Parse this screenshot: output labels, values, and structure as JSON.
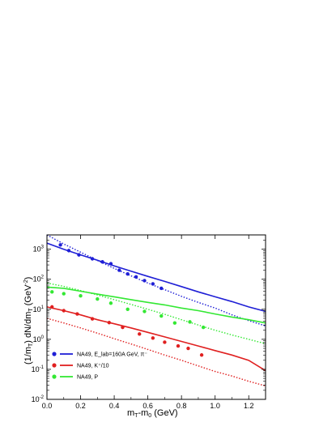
{
  "chart_data": {
    "type": "line",
    "xlabel": "m_T-m_0 (GeV)",
    "ylabel": "(1/m_T) dN/dm_T (GeV^-2)",
    "xlim": [
      0.0,
      1.3
    ],
    "ylim": [
      0.01,
      3000
    ],
    "yscale": "log",
    "x_ticks": [
      "0.0",
      "0.2",
      "0.4",
      "0.6",
      "0.8",
      "1.0",
      "1.2"
    ],
    "y_tick_exponents": [
      "-2",
      "-1",
      "0",
      "1",
      "2",
      "3"
    ],
    "legend_position": "bottom-left",
    "legend": [
      {
        "label": "NA49, E_lab=160A GeV, π⁻",
        "color": "#1f1fd6"
      },
      {
        "label": "NA49, K⁺/10",
        "color": "#e02020"
      },
      {
        "label": "NA49, P",
        "color": "#33e833"
      }
    ],
    "series": [
      {
        "name": "NA49, E_lab=160A GeV, π⁻",
        "color": "#1f1fd6",
        "points": {
          "x": [
            0.08,
            0.13,
            0.19,
            0.27,
            0.33,
            0.38,
            0.43,
            0.48,
            0.53,
            0.58,
            0.63,
            0.68
          ],
          "y": [
            1400,
            900,
            650,
            480,
            380,
            330,
            200,
            150,
            120,
            90,
            70,
            50
          ]
        },
        "solid": {
          "x": [
            0.0,
            0.1,
            0.2,
            0.3,
            0.4,
            0.5,
            0.6,
            0.7,
            0.8,
            0.9,
            1.0,
            1.1,
            1.2,
            1.3
          ],
          "y": [
            1600,
            1000,
            650,
            430,
            280,
            185,
            125,
            85,
            57,
            38,
            26,
            18,
            12,
            8.5
          ]
        },
        "dotted": {
          "x": [
            0.0,
            0.1,
            0.2,
            0.3,
            0.4,
            0.5,
            0.6,
            0.7,
            0.8,
            0.9,
            1.0,
            1.1,
            1.2,
            1.3
          ],
          "y": [
            3000,
            1500,
            800,
            420,
            230,
            130,
            75,
            45,
            27,
            17,
            11,
            6.5,
            4.2,
            2.8
          ]
        }
      },
      {
        "name": "NA49, K⁺/10",
        "color": "#e02020",
        "points": {
          "x": [
            0.03,
            0.1,
            0.18,
            0.27,
            0.37,
            0.45,
            0.55,
            0.63,
            0.7,
            0.78,
            0.84,
            0.92
          ],
          "y": [
            12,
            9,
            7,
            4.8,
            3.6,
            2.5,
            1.5,
            1.1,
            0.8,
            0.6,
            0.5,
            0.3
          ]
        },
        "solid": {
          "x": [
            0.0,
            0.1,
            0.2,
            0.3,
            0.4,
            0.5,
            0.6,
            0.7,
            0.8,
            0.9,
            1.0,
            1.1,
            1.2,
            1.3
          ],
          "y": [
            12,
            9,
            6.5,
            4.5,
            3.3,
            2.4,
            1.7,
            1.2,
            0.85,
            0.6,
            0.42,
            0.3,
            0.2,
            0.09
          ]
        },
        "dotted": {
          "x": [
            0.0,
            0.1,
            0.2,
            0.3,
            0.4,
            0.5,
            0.6,
            0.7,
            0.8,
            0.9,
            1.0,
            1.1,
            1.2,
            1.3
          ],
          "y": [
            5,
            3.5,
            2.4,
            1.6,
            1.05,
            0.7,
            0.46,
            0.3,
            0.2,
            0.13,
            0.085,
            0.06,
            0.04,
            0.028
          ]
        }
      },
      {
        "name": "NA49, P",
        "color": "#33e833",
        "points": {
          "x": [
            0.03,
            0.1,
            0.2,
            0.3,
            0.38,
            0.48,
            0.58,
            0.68,
            0.76,
            0.85,
            0.93
          ],
          "y": [
            38,
            33,
            28,
            22,
            16,
            10,
            8.5,
            6,
            3.5,
            3.8,
            2.5
          ]
        },
        "solid": {
          "x": [
            0.0,
            0.1,
            0.2,
            0.3,
            0.4,
            0.5,
            0.6,
            0.7,
            0.8,
            0.9,
            1.0,
            1.1,
            1.2,
            1.3
          ],
          "y": [
            55,
            50,
            40,
            32,
            26,
            21,
            17,
            14,
            11,
            9,
            7,
            5.5,
            4.5,
            3.5
          ]
        },
        "dotted": {
          "x": [
            0.0,
            0.1,
            0.2,
            0.3,
            0.4,
            0.5,
            0.6,
            0.7,
            0.8,
            0.9,
            1.0,
            1.1,
            1.2,
            1.3
          ],
          "y": [
            75,
            58,
            42,
            30,
            21,
            14.5,
            10,
            6.8,
            4.5,
            3.0,
            2.0,
            1.4,
            1.0,
            0.72
          ]
        }
      }
    ]
  }
}
